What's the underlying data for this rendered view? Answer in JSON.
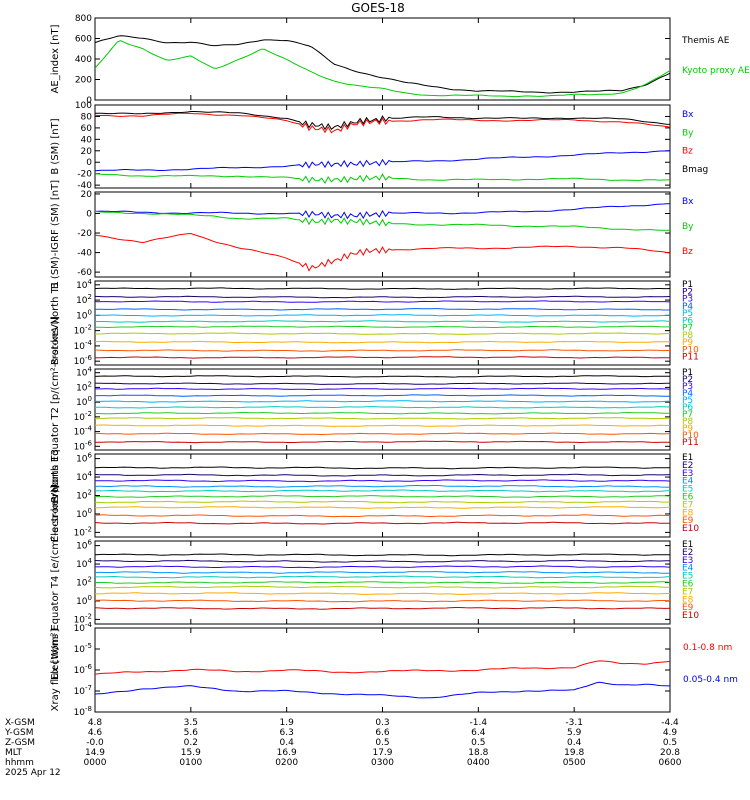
{
  "title": "GOES-18",
  "date_label": "2025 Apr 12",
  "footer": {
    "row_labels": [
      "X-GSM",
      "Y-GSM",
      "Z-GSM",
      "MLT",
      "hhmm"
    ],
    "columns": [
      [
        "4.8",
        "4.6",
        "-0.0",
        "14.9",
        "0000"
      ],
      [
        "3.5",
        "5.6",
        "0.2",
        "15.9",
        "0100"
      ],
      [
        "1.9",
        "6.3",
        "0.4",
        "16.9",
        "0200"
      ],
      [
        "0.3",
        "6.6",
        "0.5",
        "17.9",
        "0300"
      ],
      [
        "-1.4",
        "6.4",
        "0.5",
        "18.8",
        "0400"
      ],
      [
        "-3.1",
        "5.9",
        "0.4",
        "19.8",
        "0500"
      ],
      [
        "-4.4",
        "4.9",
        "0.5",
        "20.8",
        "0600"
      ]
    ]
  },
  "chart_data": [
    {
      "type": "line",
      "ylabel": "AE_index [nT]",
      "ylim": [
        0,
        800
      ],
      "yticks": [
        "800",
        "600",
        "400",
        "200",
        "0"
      ],
      "x_hours": [
        0,
        0.25,
        0.5,
        0.75,
        1.0,
        1.25,
        1.5,
        1.75,
        2.0,
        2.25,
        2.5,
        2.75,
        3.0,
        3.25,
        3.5,
        3.75,
        4.0,
        4.25,
        4.5,
        4.75,
        5.0,
        5.25,
        5.5,
        5.75,
        6.0
      ],
      "series": [
        {
          "name": "Themis AE",
          "color": "#000000",
          "values": [
            560,
            620,
            600,
            560,
            560,
            520,
            540,
            590,
            580,
            520,
            350,
            280,
            220,
            170,
            140,
            110,
            90,
            85,
            80,
            75,
            75,
            80,
            90,
            150,
            260
          ]
        },
        {
          "name": "Kyoto proxy AE",
          "color": "#00cc00",
          "values": [
            300,
            580,
            500,
            380,
            420,
            300,
            400,
            500,
            390,
            280,
            190,
            140,
            110,
            70,
            50,
            45,
            40,
            35,
            40,
            35,
            45,
            50,
            70,
            150,
            280
          ]
        }
      ]
    },
    {
      "type": "line",
      "ylabel": "B (SM) [nT]",
      "ylim": [
        -45,
        100
      ],
      "yticks": [
        "100",
        "80",
        "60",
        "40",
        "20",
        "0",
        "-20",
        "-40"
      ],
      "x_hours": [
        0,
        0.5,
        1.0,
        1.5,
        2.0,
        2.25,
        2.5,
        2.75,
        3.0,
        3.5,
        4.0,
        4.5,
        5.0,
        5.5,
        6.0
      ],
      "series": [
        {
          "name": "Bx",
          "color": "#0000ff",
          "values": [
            -15,
            -14,
            -13,
            -10,
            -7,
            -5,
            -3,
            -1,
            0,
            3,
            6,
            9,
            12,
            16,
            20
          ]
        },
        {
          "name": "By",
          "color": "#00cc00",
          "values": [
            -22,
            -24,
            -25,
            -24,
            -27,
            -30,
            -29,
            -28,
            -27,
            -30,
            -31,
            -30,
            -30,
            -31,
            -32
          ]
        },
        {
          "name": "Bz",
          "color": "#ff0000",
          "values": [
            82,
            80,
            86,
            82,
            74,
            62,
            55,
            68,
            72,
            74,
            73,
            72,
            74,
            70,
            62
          ]
        },
        {
          "name": "Bmag",
          "color": "#000000",
          "values": [
            86,
            84,
            90,
            86,
            78,
            65,
            60,
            72,
            76,
            78,
            77,
            76,
            78,
            76,
            68
          ]
        }
      ]
    },
    {
      "type": "line",
      "ylabel": "B (SM)-IGRF (SM) [nT]",
      "ylim": [
        -65,
        22
      ],
      "yticks": [
        "20",
        "0",
        "-20",
        "-40",
        "-60"
      ],
      "x_hours": [
        0,
        0.5,
        1.0,
        1.25,
        1.5,
        2.0,
        2.25,
        2.5,
        2.75,
        3.0,
        3.5,
        4.0,
        4.5,
        5.0,
        5.5,
        6.0
      ],
      "series": [
        {
          "name": "Bx",
          "color": "#0000ff",
          "values": [
            2,
            1,
            0,
            0,
            0,
            0,
            -1,
            -2,
            -1,
            0,
            1,
            1,
            2,
            4,
            7,
            10
          ]
        },
        {
          "name": "By",
          "color": "#00cc00",
          "values": [
            1,
            0,
            -2,
            -3,
            -5,
            -5,
            -8,
            -6,
            -8,
            -10,
            -11,
            -12,
            -13,
            -14,
            -16,
            -18
          ]
        },
        {
          "name": "Bz",
          "color": "#ff0000",
          "values": [
            -22,
            -30,
            -20,
            -28,
            -35,
            -45,
            -55,
            -48,
            -40,
            -37,
            -36,
            -36,
            -35,
            -34,
            -35,
            -40
          ]
        }
      ]
    },
    {
      "type": "line",
      "ylabel": "Protons North T1",
      "ylog": true,
      "ylim_exp": [
        -6.5,
        4.5
      ],
      "yticks": [
        "10^4",
        "10^2",
        "10^0",
        "10^-2",
        "10^-4",
        "10^-6"
      ],
      "series": [
        {
          "name": "P1",
          "color": "#000000",
          "log10": 3.5
        },
        {
          "name": "P2",
          "color": "#1a0070",
          "log10": 2.4
        },
        {
          "name": "P3",
          "color": "#3300ff",
          "log10": 1.8
        },
        {
          "name": "P4",
          "color": "#0060ff",
          "log10": 0.8
        },
        {
          "name": "P5",
          "color": "#00b0ff",
          "log10": 0.0
        },
        {
          "name": "P6",
          "color": "#00ccbb",
          "log10": -0.8
        },
        {
          "name": "P7",
          "color": "#22cc22",
          "log10": -1.5
        },
        {
          "name": "P8",
          "color": "#aacc00",
          "log10": -2.4
        },
        {
          "name": "P9",
          "color": "#ffaa00",
          "log10": -3.5
        },
        {
          "name": "P10",
          "color": "#ff5500",
          "log10": -4.6
        },
        {
          "name": "P11",
          "color": "#cc0000",
          "log10": -5.5
        }
      ]
    },
    {
      "type": "line",
      "ylabel": "Protons Equator T2 [p/(cm²-s-sr-keV)]",
      "ylog": true,
      "ylim_exp": [
        -6.5,
        4.5
      ],
      "yticks": [
        "10^4",
        "10^2",
        "10^0",
        "10^-2",
        "10^-4",
        "10^-6"
      ],
      "series": [
        {
          "name": "P1",
          "color": "#000000",
          "log10": 3.5
        },
        {
          "name": "P2",
          "color": "#1a0070",
          "log10": 2.5
        },
        {
          "name": "P3",
          "color": "#3300ff",
          "log10": 1.8
        },
        {
          "name": "P4",
          "color": "#0060ff",
          "log10": 0.9
        },
        {
          "name": "P5",
          "color": "#00b0ff",
          "log10": 0.1
        },
        {
          "name": "P6",
          "color": "#00ccbb",
          "log10": -0.7
        },
        {
          "name": "P7",
          "color": "#22cc22",
          "log10": -1.5
        },
        {
          "name": "P8",
          "color": "#aacc00",
          "log10": -2.2
        },
        {
          "name": "P9",
          "color": "#ffaa00",
          "log10": -3.2
        },
        {
          "name": "P10",
          "color": "#ff5500",
          "log10": -4.3
        },
        {
          "name": "P11",
          "color": "#cc0000",
          "log10": -5.4
        }
      ]
    },
    {
      "type": "line",
      "ylabel": "Electrons North T3",
      "ylog": true,
      "ylim_exp": [
        -2.5,
        6.5
      ],
      "yticks": [
        "10^6",
        "10^4",
        "10^2",
        "10^0",
        "10^-2"
      ],
      "series": [
        {
          "name": "E1",
          "color": "#000000",
          "log10": 5.0
        },
        {
          "name": "E2",
          "color": "#1a0070",
          "log10": 4.2
        },
        {
          "name": "E3",
          "color": "#3300ff",
          "log10": 3.6
        },
        {
          "name": "E4",
          "color": "#0090ff",
          "log10": 3.0
        },
        {
          "name": "E5",
          "color": "#00ccbb",
          "log10": 2.5
        },
        {
          "name": "E6",
          "color": "#22cc22",
          "log10": 1.9
        },
        {
          "name": "E7",
          "color": "#aacc00",
          "log10": 1.3
        },
        {
          "name": "E8",
          "color": "#ffaa00",
          "log10": 0.7
        },
        {
          "name": "E9",
          "color": "#ff5500",
          "log10": -0.2
        },
        {
          "name": "E10",
          "color": "#cc0000",
          "log10": -1.0
        }
      ]
    },
    {
      "type": "line",
      "ylabel": "Electrons Equator T4 [e/(cm²-s-sr-keV)]",
      "ylog": true,
      "ylim_exp": [
        -2.5,
        6.5
      ],
      "yticks": [
        "10^6",
        "10^4",
        "10^2",
        "10^0",
        "10^-2"
      ],
      "series": [
        {
          "name": "E1",
          "color": "#000000",
          "log10": 5.0
        },
        {
          "name": "E2",
          "color": "#1a0070",
          "log10": 4.3
        },
        {
          "name": "E3",
          "color": "#3300ff",
          "log10": 3.7
        },
        {
          "name": "E4",
          "color": "#0090ff",
          "log10": 3.1
        },
        {
          "name": "E5",
          "color": "#00ccbb",
          "log10": 2.6
        },
        {
          "name": "E6",
          "color": "#22cc22",
          "log10": 2.0
        },
        {
          "name": "E7",
          "color": "#aacc00",
          "log10": 1.5
        },
        {
          "name": "E8",
          "color": "#ffaa00",
          "log10": 0.8
        },
        {
          "name": "E9",
          "color": "#ff5500",
          "log10": 0.0
        },
        {
          "name": "E10",
          "color": "#cc0000",
          "log10": -0.8
        }
      ]
    },
    {
      "type": "line",
      "ylabel": "Xray flux [W/m²]",
      "ylog": true,
      "ylim_exp": [
        -8,
        -4
      ],
      "yticks": [
        "10^-4",
        "10^-5",
        "10^-6",
        "10^-7",
        "10^-8"
      ],
      "x_hours": [
        0,
        0.5,
        1.0,
        1.5,
        2.0,
        2.5,
        3.0,
        3.5,
        4.0,
        4.5,
        5.0,
        5.25,
        5.5,
        5.75,
        6.0
      ],
      "series": [
        {
          "name": "0.1-0.8 nm",
          "color": "#ff0000",
          "log10": [
            -6.2,
            -6.1,
            -6.0,
            -6.1,
            -6.0,
            -6.1,
            -6.05,
            -6.0,
            -6.0,
            -5.9,
            -5.9,
            -5.6,
            -5.7,
            -5.7,
            -5.6
          ]
        },
        {
          "name": "0.05-0.4 nm",
          "color": "#0000ff",
          "log10": [
            -7.2,
            -6.9,
            -6.8,
            -7.0,
            -7.0,
            -7.1,
            -7.2,
            -7.3,
            -7.1,
            -7.0,
            -7.0,
            -6.6,
            -6.7,
            -6.7,
            -6.8
          ]
        }
      ]
    }
  ]
}
